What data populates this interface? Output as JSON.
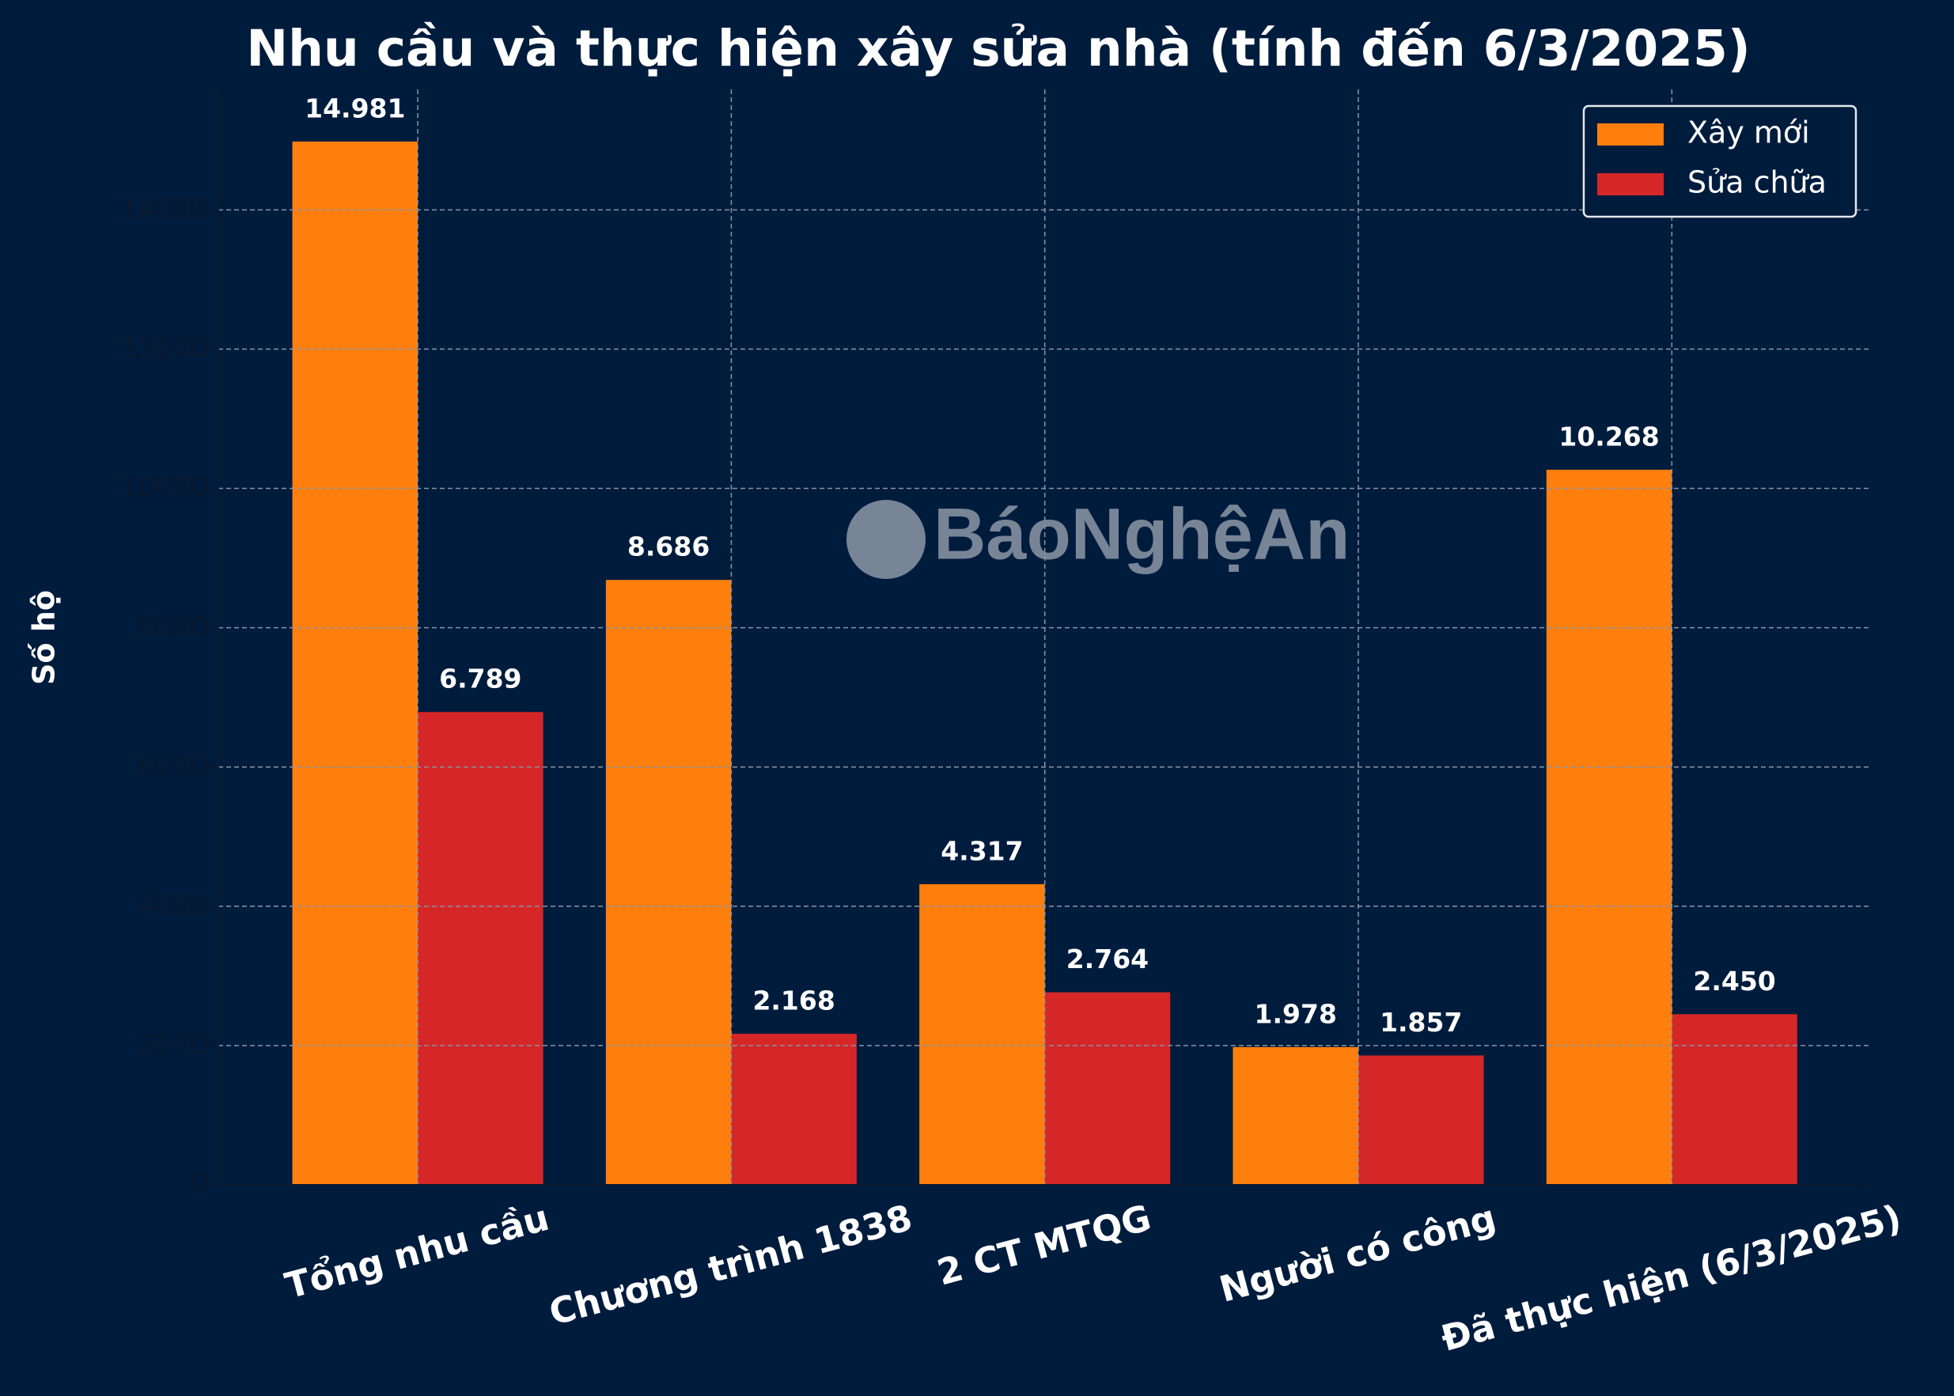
{
  "chart_data": {
    "type": "bar",
    "title": "Nhu cầu và thực hiện xây sửa nhà (tính đến 6/3/2025)",
    "y_label": "Số hộ",
    "watermark": "BáoNghệAn",
    "categories": [
      "Tổng nhu cầu",
      "Chương trình 1838",
      "2 CT MTQG",
      "Người có công",
      "Đã thực hiện (6/3/2025)"
    ],
    "series": [
      {
        "name": "Xây mới",
        "color": "#ff7f0e",
        "values": [
          14981,
          8686,
          4317,
          1978,
          10268
        ],
        "value_labels": [
          "14.981",
          "8.686",
          "4.317",
          "1.978",
          "10.268"
        ]
      },
      {
        "name": "Sửa chữa",
        "color": "#d62728",
        "values": [
          6789,
          2168,
          2764,
          1857,
          2450
        ],
        "value_labels": [
          "6.789",
          "2.168",
          "2.764",
          "1.857",
          "2.450"
        ]
      }
    ],
    "ylim": [
      0,
      15730
    ],
    "yticks": [
      0,
      2000,
      4000,
      6000,
      8000,
      10000,
      12000,
      14000
    ],
    "grid": true,
    "legend": "upper right"
  }
}
